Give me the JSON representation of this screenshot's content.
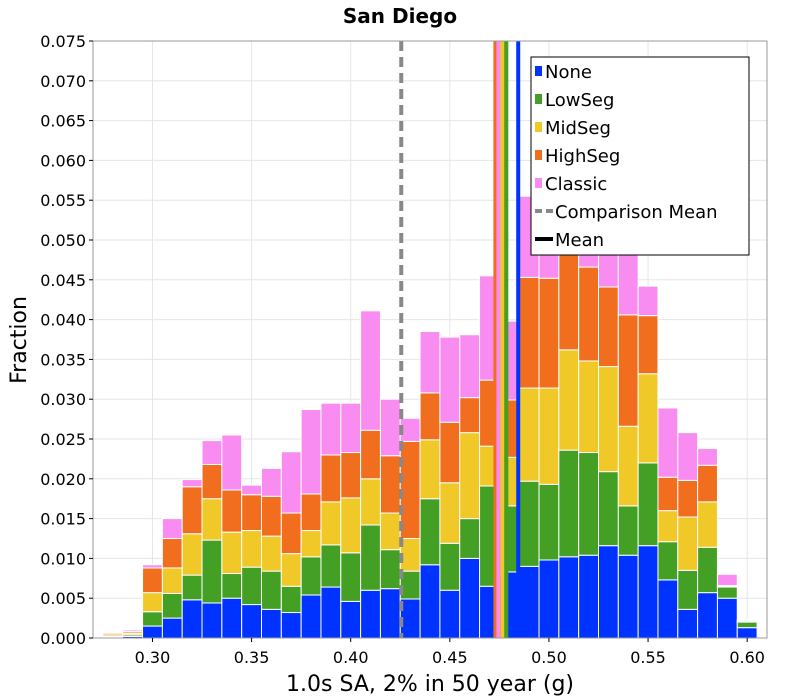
{
  "chart_data": {
    "type": "bar",
    "stacked": true,
    "title": "San Diego",
    "xlabel": "1.0s SA, 2% in 50 year (g)",
    "ylabel": "Fraction",
    "xlim": [
      0.27,
      0.61
    ],
    "ylim": [
      0,
      0.075
    ],
    "grid": true,
    "bin_width": 0.01,
    "x_ticks": [
      "0.30",
      "0.35",
      "0.40",
      "0.45",
      "0.50",
      "0.55",
      "0.60"
    ],
    "y_ticks": [
      "0.000",
      "0.005",
      "0.010",
      "0.015",
      "0.020",
      "0.025",
      "0.030",
      "0.035",
      "0.040",
      "0.045",
      "0.050",
      "0.055",
      "0.060",
      "0.065",
      "0.070",
      "0.075"
    ],
    "x": [
      0.28,
      0.29,
      0.3,
      0.31,
      0.32,
      0.33,
      0.34,
      0.35,
      0.36,
      0.37,
      0.38,
      0.39,
      0.4,
      0.41,
      0.42,
      0.43,
      0.44,
      0.45,
      0.46,
      0.47,
      0.48,
      0.49,
      0.5,
      0.51,
      0.52,
      0.53,
      0.54,
      0.55,
      0.56,
      0.57,
      0.58,
      0.59,
      0.6
    ],
    "series": [
      {
        "name": "None",
        "color": "#0033ff",
        "values": [
          0.0001,
          0.0002,
          0.0015,
          0.0025,
          0.0048,
          0.0044,
          0.005,
          0.0042,
          0.0036,
          0.0032,
          0.0054,
          0.0064,
          0.0046,
          0.006,
          0.0062,
          0.0049,
          0.0092,
          0.006,
          0.01,
          0.0065,
          0.0083,
          0.009,
          0.0098,
          0.0102,
          0.0104,
          0.0116,
          0.0104,
          0.0116,
          0.0073,
          0.0036,
          0.0057,
          0.005,
          0.0013
        ]
      },
      {
        "name": "LowSeg",
        "color": "#44a024",
        "values": [
          0.0001,
          0.0002,
          0.0018,
          0.0031,
          0.0031,
          0.0079,
          0.0031,
          0.0047,
          0.0048,
          0.0033,
          0.0048,
          0.0053,
          0.0061,
          0.0082,
          0.0049,
          0.0035,
          0.0083,
          0.0059,
          0.005,
          0.0126,
          0.0083,
          0.0107,
          0.0095,
          0.0134,
          0.0129,
          0.0093,
          0.0062,
          0.0104,
          0.0048,
          0.0049,
          0.0057,
          0.0014,
          0.0007
        ]
      },
      {
        "name": "MidSeg",
        "color": "#f0c828",
        "values": [
          0.0002,
          0.0002,
          0.0024,
          0.0032,
          0.0052,
          0.0052,
          0.0052,
          0.0046,
          0.0044,
          0.0041,
          0.0033,
          0.0054,
          0.0069,
          0.0058,
          0.0046,
          0.0041,
          0.0074,
          0.0076,
          0.0108,
          0.005,
          0.0061,
          0.0117,
          0.0121,
          0.0126,
          0.0115,
          0.0132,
          0.01,
          0.0112,
          0.0039,
          0.0067,
          0.0057,
          0.0001,
          0.0001
        ]
      },
      {
        "name": "HighSeg",
        "color": "#f06e1e",
        "values": [
          0.0002,
          0.0002,
          0.0031,
          0.0037,
          0.0059,
          0.0043,
          0.0053,
          0.0045,
          0.005,
          0.0051,
          0.0046,
          0.0059,
          0.0057,
          0.0061,
          0.0072,
          0.0122,
          0.0059,
          0.0076,
          0.0044,
          0.0083,
          0.0072,
          0.0139,
          0.0138,
          0.014,
          0.0118,
          0.01,
          0.014,
          0.0073,
          0.0042,
          0.0046,
          0.0046,
          0.0001,
          0.0001
        ]
      },
      {
        "name": "Classic",
        "color": "#f88cf0",
        "values": [
          0.0001,
          0.0002,
          0.0004,
          0.0025,
          0.0009,
          0.003,
          0.0069,
          0.0012,
          0.0035,
          0.0077,
          0.0106,
          0.0065,
          0.0062,
          0.015,
          0.0071,
          0.0029,
          0.0077,
          0.0107,
          0.0079,
          0.0131,
          0.0099,
          0.0102,
          0.011,
          0.01,
          0.0119,
          0.0103,
          0.01,
          0.0037,
          0.0087,
          0.006,
          0.0021,
          0.0014,
          0.0001
        ]
      }
    ],
    "vlines": [
      {
        "name": "Comparison Mean",
        "x": 0.4255,
        "color": "#888888",
        "style": "dashed"
      },
      {
        "name": "Mean",
        "x": 0.4775,
        "color": "#000000",
        "style": "solid"
      },
      {
        "x": 0.4845,
        "color": "#0033ff",
        "style": "solid"
      },
      {
        "x": 0.4785,
        "color": "#44a024",
        "style": "solid"
      },
      {
        "x": 0.4765,
        "color": "#f0c828",
        "style": "solid"
      },
      {
        "x": 0.473,
        "color": "#f06e1e",
        "style": "solid"
      },
      {
        "x": 0.4745,
        "color": "#f88cf0",
        "style": "solid"
      }
    ],
    "legend": {
      "position": "top-right",
      "entries": [
        {
          "label": "None",
          "color": "#0033ff",
          "kind": "patch"
        },
        {
          "label": "LowSeg",
          "color": "#44a024",
          "kind": "patch"
        },
        {
          "label": "MidSeg",
          "color": "#f0c828",
          "kind": "patch"
        },
        {
          "label": "HighSeg",
          "color": "#f06e1e",
          "kind": "patch"
        },
        {
          "label": "Classic",
          "color": "#f88cf0",
          "kind": "patch"
        },
        {
          "label": "Comparison Mean",
          "color": "#888888",
          "kind": "dashed"
        },
        {
          "label": "Mean",
          "color": "#000000",
          "kind": "solid"
        }
      ]
    }
  }
}
